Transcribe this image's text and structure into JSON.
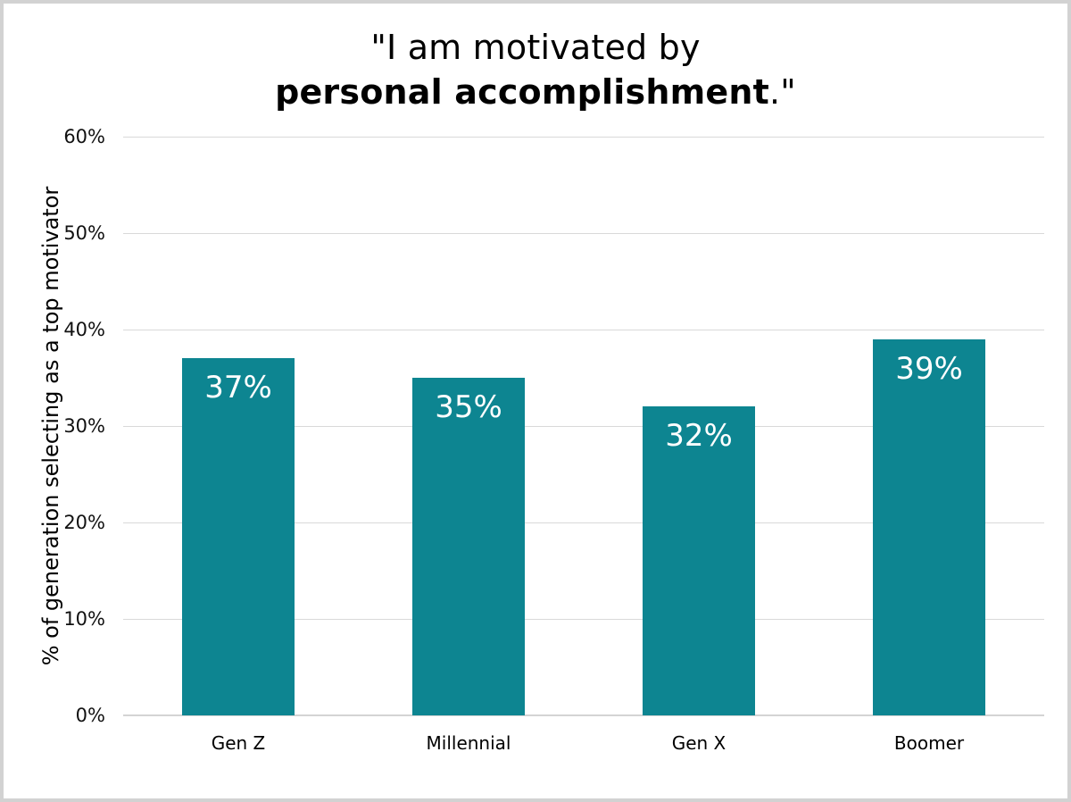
{
  "frame": {
    "background": "#ffffff",
    "border_color": "#d2d2d2"
  },
  "title": {
    "line1": "\"I am motivated by",
    "line2_bold": "personal accomplishment",
    "line2_suffix": ".\""
  },
  "chart_data": {
    "type": "bar",
    "title": "\"I am motivated by personal accomplishment.\"",
    "categories": [
      "Gen Z",
      "Millennial",
      "Gen X",
      "Boomer"
    ],
    "values": [
      37,
      35,
      32,
      39
    ],
    "data_labels": [
      "37%",
      "35%",
      "32%",
      "39%"
    ],
    "xlabel": "",
    "ylabel": "% of generation selecting as a top motivator",
    "ylim": [
      0,
      60
    ],
    "ytick_values": [
      0,
      10,
      20,
      30,
      40,
      50,
      60
    ],
    "ytick_labels": [
      "0%",
      "10%",
      "20%",
      "30%",
      "40%",
      "50%",
      "60%"
    ],
    "grid": "horizontal",
    "legend": "none",
    "bar_color": "#0d8591",
    "data_label_color": "#ffffff",
    "gridline_color": "#d9d9d9",
    "axisline_color": "#d4d4d4"
  }
}
